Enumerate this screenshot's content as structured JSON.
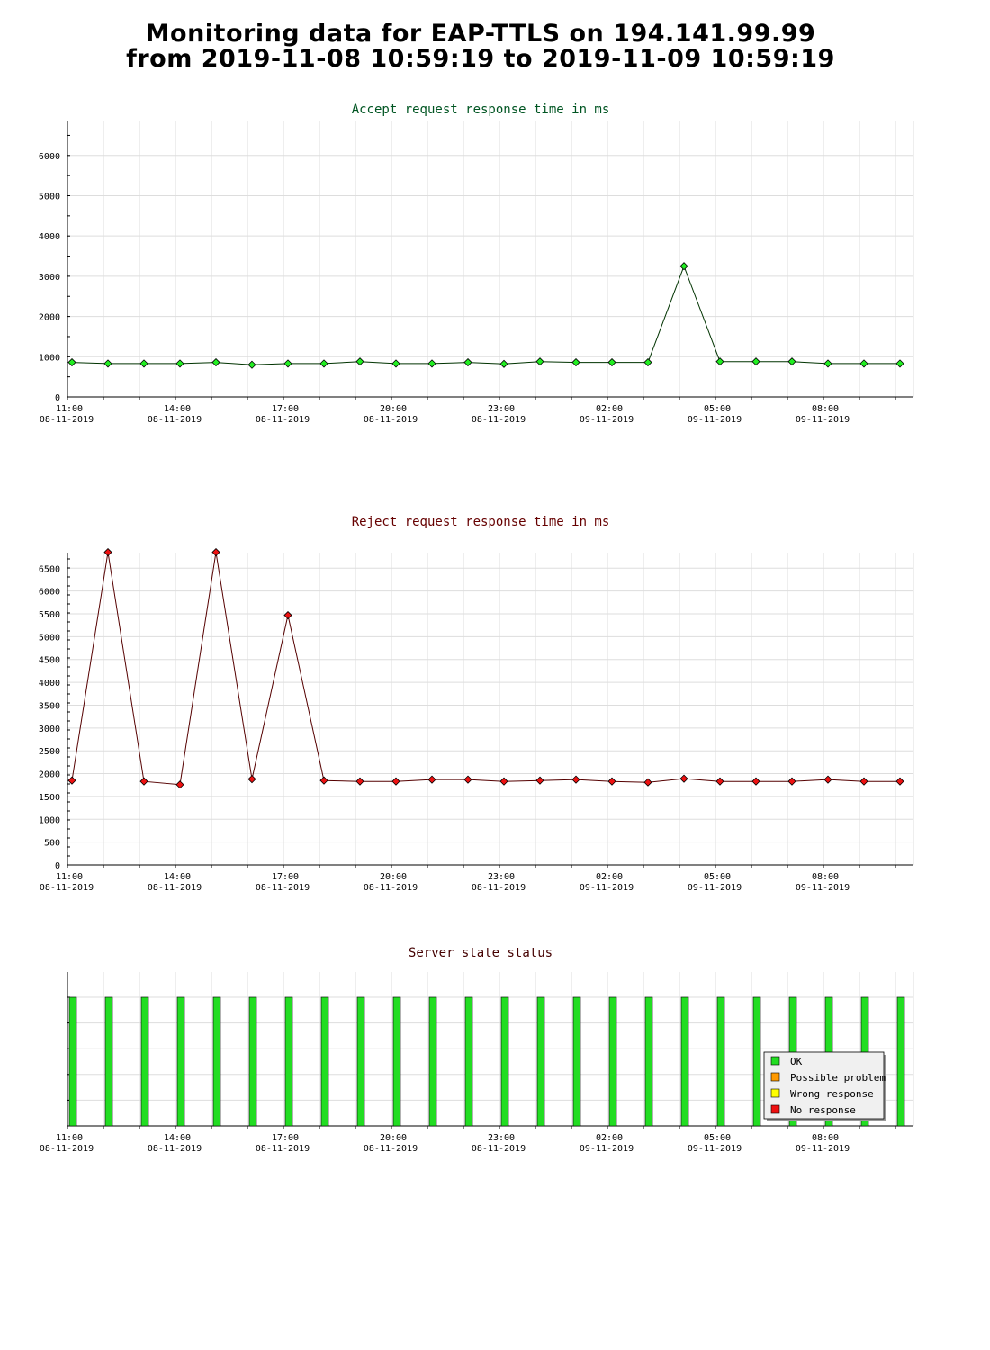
{
  "page": {
    "title_line1": "Monitoring data for EAP-TTLS on 194.141.99.99",
    "title_line2": "from 2019-11-08 10:59:19 to 2019-11-09 10:59:19"
  },
  "colors": {
    "accept_line": "#003300",
    "accept_marker": "#22ee22",
    "accept_title": "#005522",
    "reject_line": "#550000",
    "reject_marker": "#ee1111",
    "reject_title": "#660000",
    "status_title": "#440000",
    "ok": "#22dd22",
    "possible_problem": "#ff9900",
    "wrong_response": "#ffff00",
    "no_response": "#ee1111",
    "grid": "#dddddd"
  },
  "x_axis": {
    "ticks": [
      {
        "time": "11:00",
        "date": "08-11-2019"
      },
      {
        "time": "14:00",
        "date": "08-11-2019"
      },
      {
        "time": "17:00",
        "date": "08-11-2019"
      },
      {
        "time": "20:00",
        "date": "08-11-2019"
      },
      {
        "time": "23:00",
        "date": "08-11-2019"
      },
      {
        "time": "02:00",
        "date": "09-11-2019"
      },
      {
        "time": "05:00",
        "date": "09-11-2019"
      },
      {
        "time": "08:00",
        "date": "09-11-2019"
      }
    ]
  },
  "chart_data": [
    {
      "type": "line",
      "title": "Accept request response time in ms",
      "x": [
        "2019-11-08 11:00",
        "2019-11-08 12:00",
        "2019-11-08 13:00",
        "2019-11-08 14:00",
        "2019-11-08 15:00",
        "2019-11-08 16:00",
        "2019-11-08 17:00",
        "2019-11-08 18:00",
        "2019-11-08 19:00",
        "2019-11-08 20:00",
        "2019-11-08 21:00",
        "2019-11-08 22:00",
        "2019-11-08 23:00",
        "2019-11-09 00:00",
        "2019-11-09 01:00",
        "2019-11-09 02:00",
        "2019-11-09 03:00",
        "2019-11-09 04:00",
        "2019-11-09 05:00",
        "2019-11-09 06:00",
        "2019-11-09 07:00",
        "2019-11-09 08:00",
        "2019-11-09 09:00",
        "2019-11-09 10:00"
      ],
      "values": [
        860,
        830,
        830,
        830,
        860,
        800,
        830,
        830,
        880,
        830,
        830,
        860,
        820,
        880,
        860,
        860,
        860,
        3250,
        880,
        880,
        880,
        830,
        830,
        830
      ],
      "ylim": [
        0,
        6800
      ],
      "yticks": [
        "0",
        "1000",
        "2000",
        "3000",
        "4000",
        "5000",
        "6000"
      ],
      "grid": true
    },
    {
      "type": "line",
      "title": "Reject request response time in ms",
      "x": [
        "2019-11-08 11:00",
        "2019-11-08 12:00",
        "2019-11-08 13:00",
        "2019-11-08 14:00",
        "2019-11-08 15:00",
        "2019-11-08 16:00",
        "2019-11-08 17:00",
        "2019-11-08 18:00",
        "2019-11-08 19:00",
        "2019-11-08 20:00",
        "2019-11-08 21:00",
        "2019-11-08 22:00",
        "2019-11-08 23:00",
        "2019-11-09 00:00",
        "2019-11-09 01:00",
        "2019-11-09 02:00",
        "2019-11-09 03:00",
        "2019-11-09 04:00",
        "2019-11-09 05:00",
        "2019-11-09 06:00",
        "2019-11-09 07:00",
        "2019-11-09 08:00",
        "2019-11-09 09:00",
        "2019-11-09 10:00"
      ],
      "values": [
        1850,
        6850,
        1830,
        1760,
        6850,
        1880,
        5470,
        1850,
        1830,
        1830,
        1870,
        1870,
        1830,
        1850,
        1870,
        1830,
        1810,
        1890,
        1830,
        1830,
        1830,
        1870,
        1830,
        1830
      ],
      "ylim": [
        0,
        6900
      ],
      "yticks": [
        "0",
        "500",
        "1000",
        "1500",
        "2000",
        "2500",
        "3000",
        "3500",
        "4000",
        "4500",
        "5000",
        "5500",
        "6000",
        "6500"
      ],
      "grid": true
    },
    {
      "type": "bar",
      "title": "Server state status",
      "x": [
        "2019-11-08 11:00",
        "2019-11-08 12:00",
        "2019-11-08 13:00",
        "2019-11-08 14:00",
        "2019-11-08 15:00",
        "2019-11-08 16:00",
        "2019-11-08 17:00",
        "2019-11-08 18:00",
        "2019-11-08 19:00",
        "2019-11-08 20:00",
        "2019-11-08 21:00",
        "2019-11-08 22:00",
        "2019-11-08 23:00",
        "2019-11-09 00:00",
        "2019-11-09 01:00",
        "2019-11-09 02:00",
        "2019-11-09 03:00",
        "2019-11-09 04:00",
        "2019-11-09 05:00",
        "2019-11-09 06:00",
        "2019-11-09 07:00",
        "2019-11-09 08:00",
        "2019-11-09 09:00",
        "2019-11-09 10:00"
      ],
      "status": [
        "OK",
        "OK",
        "OK",
        "OK",
        "OK",
        "OK",
        "OK",
        "OK",
        "OK",
        "OK",
        "OK",
        "OK",
        "OK",
        "OK",
        "OK",
        "OK",
        "OK",
        "OK",
        "OK",
        "OK",
        "OK",
        "OK",
        "OK",
        "OK"
      ],
      "legend": [
        {
          "label": "OK",
          "color_key": "ok"
        },
        {
          "label": "Possible problem",
          "color_key": "possible_problem"
        },
        {
          "label": "Wrong response",
          "color_key": "wrong_response"
        },
        {
          "label": "No response",
          "color_key": "no_response"
        }
      ],
      "legend_position": "bottom-right",
      "grid": true
    }
  ]
}
